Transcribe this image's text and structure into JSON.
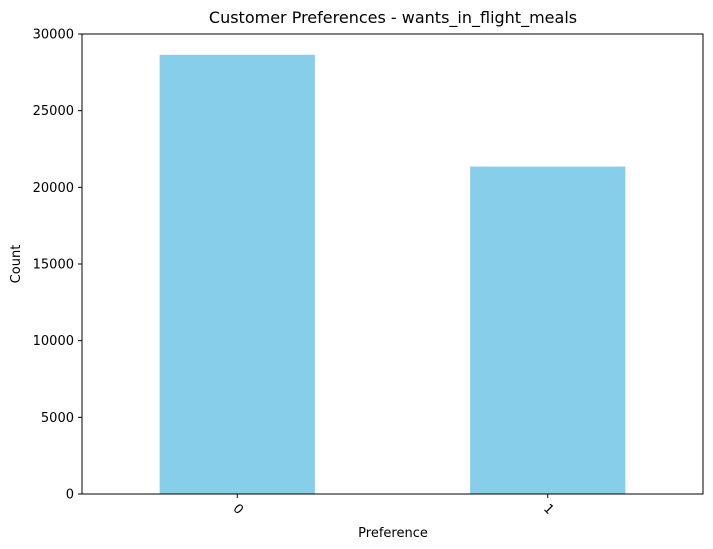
{
  "chart_data": {
    "type": "bar",
    "title": "Customer Preferences - wants_in_flight_meals",
    "xlabel": "Preference",
    "ylabel": "Count",
    "categories": [
      "0",
      "1"
    ],
    "values": [
      28643,
      21357
    ],
    "ylim": [
      0,
      30000
    ],
    "yticks": [
      0,
      5000,
      10000,
      15000,
      20000,
      25000,
      30000
    ],
    "bar_color": "#87ceeb",
    "grid": false,
    "legend": "none"
  }
}
